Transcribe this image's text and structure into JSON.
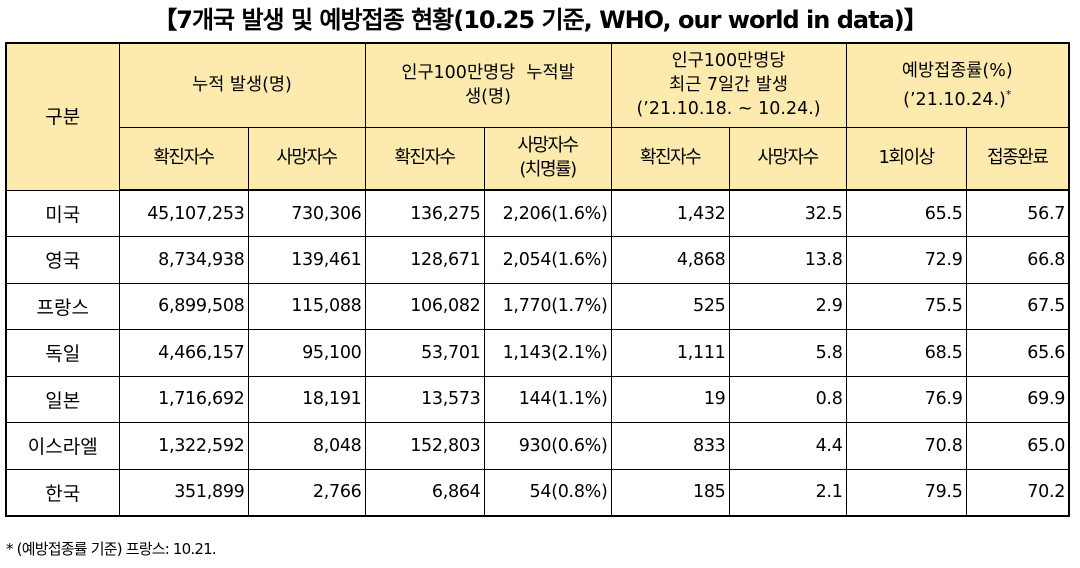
{
  "title": "【7개국 발생 및 예방접종 현황(10.25 기준, WHO, our world in data)】",
  "table": {
    "corner_label": "구분",
    "groups": [
      {
        "label": "누적 발생(명)"
      },
      {
        "label_line1": "인구100만명당  누적발",
        "label_line2": "생(명)"
      },
      {
        "label_line1": "인구100만명당",
        "label_line2": "최근 7일간 발생",
        "label_line3": "(’21.10.18. ~ 10.24.)"
      },
      {
        "label_line1": "예방접종률(%)",
        "label_line2": "(’21.10.24.)",
        "marker": "*"
      }
    ],
    "subheaders": [
      {
        "line1": "확진자수"
      },
      {
        "line1": "사망자수"
      },
      {
        "line1": "확진자수"
      },
      {
        "line1": "사망자수",
        "line2": "(치명률)"
      },
      {
        "line1": "확진자수"
      },
      {
        "line1": "사망자수"
      },
      {
        "line1": "1회이상"
      },
      {
        "line1": "접종완료"
      }
    ],
    "rows": [
      {
        "country": "미국",
        "cells": [
          "45,107,253",
          "730,306",
          "136,275",
          "2,206(1.6%)",
          "1,432",
          "32.5",
          "65.5",
          "56.7"
        ]
      },
      {
        "country": "영국",
        "cells": [
          "8,734,938",
          "139,461",
          "128,671",
          "2,054(1.6%)",
          "4,868",
          "13.8",
          "72.9",
          "66.8"
        ]
      },
      {
        "country": "프랑스",
        "cells": [
          "6,899,508",
          "115,088",
          "106,082",
          "1,770(1.7%)",
          "525",
          "2.9",
          "75.5",
          "67.5"
        ]
      },
      {
        "country": "독일",
        "cells": [
          "4,466,157",
          "95,100",
          "53,701",
          "1,143(2.1%)",
          "1,111",
          "5.8",
          "68.5",
          "65.6"
        ]
      },
      {
        "country": "일본",
        "cells": [
          "1,716,692",
          "18,191",
          "13,573",
          "144(1.1%)",
          "19",
          "0.8",
          "76.9",
          "69.9"
        ]
      },
      {
        "country": "이스라엘",
        "cells": [
          "1,322,592",
          "8,048",
          "152,803",
          "930(0.6%)",
          "833",
          "4.4",
          "70.8",
          "65.0"
        ]
      },
      {
        "country": "한국",
        "cells": [
          "351,899",
          "2,766",
          "6,864",
          "54(0.8%)",
          "185",
          "2.1",
          "79.5",
          "70.2"
        ]
      }
    ]
  },
  "footnote": "* (예방접종률 기준) 프랑스: 10.21.",
  "colors": {
    "header_bg": "#fdeaae",
    "border": "#000000"
  }
}
